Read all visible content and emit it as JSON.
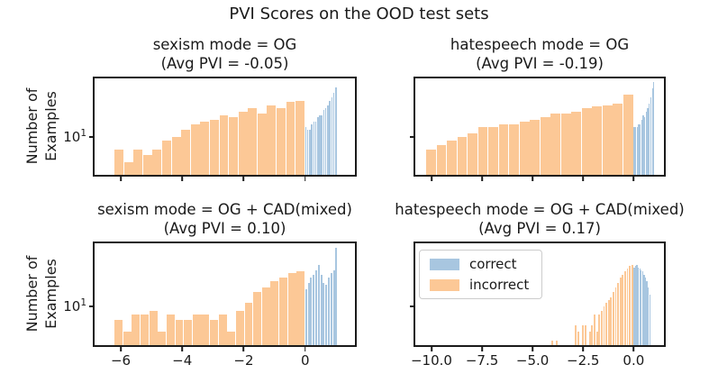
{
  "title": "PVI Scores on the OOD test sets",
  "ylabel_line1": "Number of",
  "ylabel_line2": "Examples",
  "ytick_label": {
    "base": "10",
    "exponent": "1"
  },
  "colors": {
    "correct": "#a8c6e0",
    "incorrect": "#fcc896",
    "axis": "#1a1a1a",
    "text": "#1a1a1a",
    "legend_border": "#cccccc"
  },
  "legend": {
    "items": [
      {
        "label": "correct",
        "color": "#a8c6e0"
      },
      {
        "label": "incorrect",
        "color": "#fcc896"
      }
    ]
  },
  "chart_data": [
    {
      "type": "histogram",
      "position": "top-left",
      "title": "sexism mode = OG",
      "subtitle": "(Avg PVI = -0.05)",
      "xlim": [
        -6.85,
        1.62
      ],
      "ylim": [
        3.5,
        50
      ],
      "yscale": "log",
      "xticks": [
        -6,
        -4,
        -2,
        0
      ],
      "xtick_labels": [],
      "show_xtick_labels": false,
      "ytick_value": 10,
      "show_ytick_label": true,
      "series": [
        {
          "name": "incorrect",
          "start": -6.2,
          "bin_width": 0.31,
          "counts": [
            7,
            5,
            7,
            6,
            7,
            9,
            10,
            12,
            14,
            15,
            16,
            18,
            17,
            20,
            22,
            19,
            24,
            22,
            26,
            27
          ]
        },
        {
          "name": "correct",
          "start": 0.0,
          "bin_width": 0.065,
          "counts": [
            13,
            12,
            12,
            14,
            15,
            15,
            17,
            18,
            18,
            21,
            22,
            24,
            27,
            30,
            34,
            39
          ]
        }
      ]
    },
    {
      "type": "histogram",
      "position": "top-right",
      "title": "hatespeech mode = OG",
      "subtitle": "(Avg PVI = -0.19)",
      "xlim": [
        -10.8,
        1.5
      ],
      "ylim": [
        3.5,
        50
      ],
      "yscale": "log",
      "xticks": [
        -10,
        -7.5,
        -5,
        -2.5,
        0
      ],
      "xtick_labels": [],
      "show_xtick_labels": false,
      "ytick_value": 10,
      "show_ytick_label": false,
      "series": [
        {
          "name": "incorrect",
          "start": -10.26,
          "bin_width": 0.513,
          "counts": [
            7,
            8,
            9,
            10,
            11,
            13,
            13,
            14,
            14,
            15,
            16,
            17,
            19,
            19,
            20,
            22,
            23,
            24,
            25,
            32
          ]
        },
        {
          "name": "correct",
          "start": 0.0,
          "bin_width": 0.075,
          "counts": [
            13,
            13,
            13,
            14,
            14,
            16,
            18,
            17,
            20,
            22,
            25,
            30,
            38,
            45
          ]
        }
      ]
    },
    {
      "type": "histogram",
      "position": "bottom-left",
      "title": "sexism mode = OG + CAD(mixed)",
      "subtitle": "(Avg PVI = 0.10)",
      "xlim": [
        -6.85,
        1.62
      ],
      "ylim": [
        3.5,
        56
      ],
      "yscale": "log",
      "xticks": [
        -6,
        -4,
        -2,
        0
      ],
      "xtick_labels": [
        "−6",
        "−4",
        "−2",
        "0"
      ],
      "show_xtick_labels": true,
      "ytick_value": 10,
      "show_ytick_label": true,
      "series": [
        {
          "name": "incorrect",
          "start": -6.2,
          "bin_width": 0.282,
          "counts": [
            7,
            5,
            8,
            8,
            9,
            5,
            8,
            7,
            7,
            8,
            8,
            7,
            8,
            5,
            9,
            11,
            15,
            17,
            20,
            22,
            25,
            26
          ]
        },
        {
          "name": "correct",
          "start": 0.0,
          "bin_width": 0.082,
          "counts": [
            16,
            19,
            22,
            24,
            27,
            31,
            24,
            19,
            18,
            22,
            25,
            27,
            49
          ]
        }
      ]
    },
    {
      "type": "histogram",
      "position": "bottom-right",
      "title": "hatespeech mode = OG + CAD(mixed)",
      "subtitle": "(Avg PVI = 0.17)",
      "xlim": [
        -10.8,
        1.5
      ],
      "ylim": [
        3.5,
        56
      ],
      "yscale": "log",
      "xticks": [
        -10,
        -7.5,
        -5,
        -2.5,
        0
      ],
      "xtick_labels": [
        "−10.0",
        "−7.5",
        "−5.0",
        "−2.5",
        "0.0"
      ],
      "show_xtick_labels": true,
      "ytick_value": 10,
      "show_ytick_label": false,
      "series": [
        {
          "name": "incorrect",
          "start": -4.06,
          "bin_width": 0.116,
          "counts": [
            4,
            0,
            4,
            0,
            0,
            0,
            0,
            0,
            0,
            0,
            6,
            5,
            0,
            6,
            6,
            0,
            5,
            6,
            8,
            5,
            8,
            9,
            10,
            11,
            12,
            13,
            15,
            17,
            19,
            22,
            24,
            26,
            28,
            30,
            31
          ]
        },
        {
          "name": "correct",
          "start": 0.0,
          "bin_width": 0.07,
          "counts": [
            29,
            30,
            31,
            29,
            28,
            27,
            26,
            24,
            22,
            20,
            17,
            14
          ]
        }
      ]
    }
  ]
}
